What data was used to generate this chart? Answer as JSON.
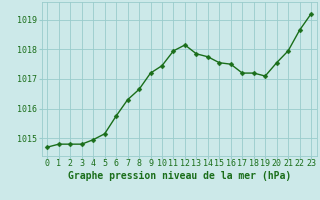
{
  "x": [
    0,
    1,
    2,
    3,
    4,
    5,
    6,
    7,
    8,
    9,
    10,
    11,
    12,
    13,
    14,
    15,
    16,
    17,
    18,
    19,
    20,
    21,
    22,
    23
  ],
  "y": [
    1014.7,
    1014.8,
    1014.8,
    1014.8,
    1014.95,
    1015.15,
    1015.75,
    1016.3,
    1016.65,
    1017.2,
    1017.45,
    1017.95,
    1018.15,
    1017.85,
    1017.75,
    1017.55,
    1017.5,
    1017.2,
    1017.2,
    1017.1,
    1017.55,
    1017.95,
    1018.65,
    1019.2
  ],
  "line_color": "#1a6e1a",
  "marker": "D",
  "marker_size": 2.5,
  "line_width": 1.0,
  "bg_color": "#cce9e9",
  "grid_color": "#99cccc",
  "xlabel": "Graphe pression niveau de la mer (hPa)",
  "xlabel_color": "#1a6e1a",
  "xlabel_fontsize": 7,
  "tick_color": "#1a6e1a",
  "tick_fontsize": 6,
  "ylim": [
    1014.4,
    1019.6
  ],
  "xlim": [
    -0.5,
    23.5
  ],
  "yticks": [
    1015,
    1016,
    1017,
    1018,
    1019
  ],
  "xtick_labels": [
    "0",
    "1",
    "2",
    "3",
    "4",
    "5",
    "6",
    "7",
    "8",
    "9",
    "10",
    "11",
    "12",
    "13",
    "14",
    "15",
    "16",
    "17",
    "18",
    "19",
    "20",
    "21",
    "22",
    "23"
  ]
}
